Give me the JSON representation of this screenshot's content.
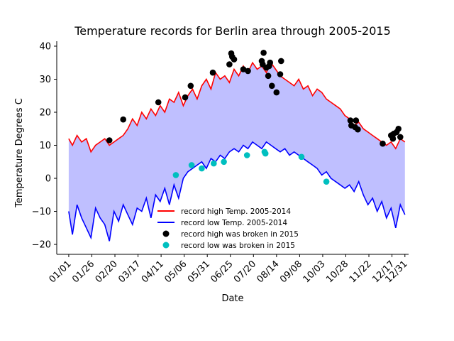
{
  "chart_data": {
    "type": "line",
    "title": "Temperature records for Berlin area through 2005-2015",
    "xlabel": "Date",
    "ylabel": "Temperature Degrees C",
    "xlim": [
      -12,
      369
    ],
    "ylim": [
      -23,
      41.5
    ],
    "x_ticks": [
      {
        "day": 1,
        "label": "01/01"
      },
      {
        "day": 26,
        "label": "01/26"
      },
      {
        "day": 51,
        "label": "02/20"
      },
      {
        "day": 76,
        "label": "03/17"
      },
      {
        "day": 101,
        "label": "04/11"
      },
      {
        "day": 126,
        "label": "05/06"
      },
      {
        "day": 151,
        "label": "05/31"
      },
      {
        "day": 176,
        "label": "06/25"
      },
      {
        "day": 201,
        "label": "07/20"
      },
      {
        "day": 226,
        "label": "08/14"
      },
      {
        "day": 251,
        "label": "09/08"
      },
      {
        "day": 276,
        "label": "10/03"
      },
      {
        "day": 301,
        "label": "10/28"
      },
      {
        "day": 326,
        "label": "11/22"
      },
      {
        "day": 351,
        "label": "12/17"
      },
      {
        "day": 365,
        "label": "12/31"
      }
    ],
    "y_ticks": [
      -20,
      -10,
      0,
      10,
      20,
      30,
      40
    ],
    "legend_position": "lower-center",
    "series": [
      {
        "name": "record high Temp. 2005-2014",
        "color": "#ff0000",
        "x": [
          1,
          5,
          10,
          15,
          20,
          25,
          30,
          35,
          40,
          45,
          50,
          55,
          60,
          65,
          70,
          75,
          80,
          85,
          90,
          95,
          100,
          105,
          110,
          115,
          120,
          125,
          130,
          135,
          140,
          145,
          150,
          155,
          160,
          165,
          170,
          175,
          180,
          185,
          190,
          195,
          200,
          205,
          210,
          215,
          220,
          225,
          230,
          235,
          240,
          245,
          250,
          255,
          260,
          265,
          270,
          275,
          280,
          285,
          290,
          295,
          300,
          305,
          310,
          315,
          320,
          325,
          330,
          335,
          340,
          345,
          350,
          355,
          360,
          365
        ],
        "values": [
          12,
          10,
          13,
          11,
          12,
          8,
          10,
          11,
          12,
          10,
          11,
          12,
          13,
          15,
          18,
          16,
          20,
          18,
          21,
          19,
          22,
          20,
          24,
          23,
          26,
          22,
          25,
          27,
          24,
          28,
          30,
          27,
          32,
          30,
          31,
          29,
          33,
          31,
          34,
          32,
          35,
          33,
          34,
          32,
          35,
          33,
          31,
          30,
          29,
          28,
          30,
          27,
          28,
          25,
          27,
          26,
          24,
          23,
          22,
          21,
          19,
          18,
          16,
          17,
          15,
          14,
          13,
          12,
          11,
          10,
          11,
          9,
          12,
          11
        ]
      },
      {
        "name": "record low Temp. 2005-2014",
        "color": "#0000ff",
        "x": [
          1,
          5,
          10,
          15,
          20,
          25,
          30,
          35,
          40,
          45,
          50,
          55,
          60,
          65,
          70,
          75,
          80,
          85,
          90,
          95,
          100,
          105,
          110,
          115,
          120,
          125,
          130,
          135,
          140,
          145,
          150,
          155,
          160,
          165,
          170,
          175,
          180,
          185,
          190,
          195,
          200,
          205,
          210,
          215,
          220,
          225,
          230,
          235,
          240,
          245,
          250,
          255,
          260,
          265,
          270,
          275,
          280,
          285,
          290,
          295,
          300,
          305,
          310,
          315,
          320,
          325,
          330,
          335,
          340,
          345,
          350,
          355,
          360,
          365
        ],
        "values": [
          -10,
          -17,
          -8,
          -12,
          -15,
          -18,
          -9,
          -12,
          -14,
          -19,
          -10,
          -13,
          -8,
          -11,
          -14,
          -9,
          -10,
          -6,
          -12,
          -5,
          -7,
          -3,
          -8,
          -2,
          -6,
          0,
          2,
          3,
          4,
          5,
          3,
          6,
          5,
          7,
          6,
          8,
          9,
          8,
          10,
          9,
          11,
          10,
          9,
          11,
          10,
          9,
          8,
          9,
          7,
          8,
          7,
          6,
          5,
          4,
          3,
          1,
          2,
          0,
          -1,
          -2,
          -3,
          -2,
          -4,
          -1,
          -5,
          -8,
          -6,
          -10,
          -7,
          -12,
          -9,
          -15,
          -8,
          -11
        ]
      }
    ],
    "scatter": [
      {
        "name": "record high was broken in 2015",
        "color": "#000000",
        "points": [
          [
            45,
            11.5
          ],
          [
            60,
            17.8
          ],
          [
            98,
            23
          ],
          [
            127,
            24.5
          ],
          [
            133,
            28
          ],
          [
            157,
            32
          ],
          [
            175,
            34.5
          ],
          [
            177,
            37.8
          ],
          [
            178,
            36.8
          ],
          [
            180,
            36
          ],
          [
            190,
            33
          ],
          [
            195,
            32.5
          ],
          [
            210,
            35.5
          ],
          [
            211,
            34.5
          ],
          [
            212,
            38
          ],
          [
            215,
            33.5
          ],
          [
            217,
            31
          ],
          [
            218,
            34
          ],
          [
            219,
            35
          ],
          [
            221,
            28
          ],
          [
            226,
            26
          ],
          [
            230,
            31.5
          ],
          [
            231,
            35.5
          ],
          [
            306,
            17.5
          ],
          [
            307,
            16
          ],
          [
            311,
            15.5
          ],
          [
            312,
            17.5
          ],
          [
            314,
            14.8
          ],
          [
            341,
            10.5
          ],
          [
            350,
            13
          ],
          [
            352,
            12
          ],
          [
            353,
            13.5
          ],
          [
            356,
            14
          ],
          [
            358,
            15
          ],
          [
            360,
            12.5
          ]
        ]
      },
      {
        "name": "record low was broken in 2015",
        "color": "#00bfbf",
        "points": [
          [
            117,
            1
          ],
          [
            134,
            4
          ],
          [
            145,
            3
          ],
          [
            158,
            4.5
          ],
          [
            169,
            5
          ],
          [
            194,
            7
          ],
          [
            213,
            8
          ],
          [
            214,
            7.5
          ],
          [
            253,
            6.5
          ],
          [
            280,
            -1
          ]
        ]
      }
    ]
  }
}
